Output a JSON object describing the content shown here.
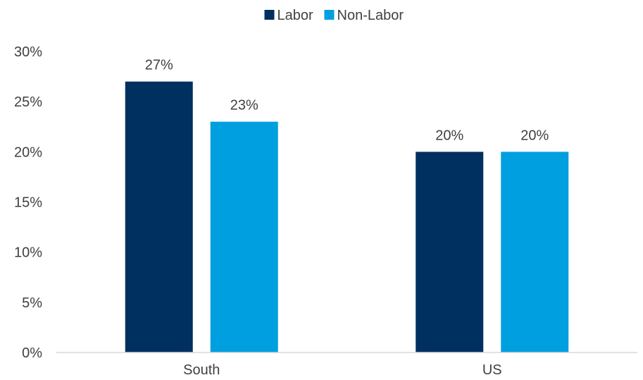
{
  "chart_data": {
    "type": "bar",
    "categories": [
      "South",
      "US"
    ],
    "series": [
      {
        "name": "Labor",
        "values": [
          27,
          20
        ],
        "color": "#003060",
        "labels": [
          "27%",
          "20%"
        ]
      },
      {
        "name": "Non-Labor",
        "values": [
          23,
          20
        ],
        "color": "#009fdf",
        "labels": [
          "23%",
          "20%"
        ]
      }
    ],
    "ylim": [
      0,
      30
    ],
    "yticks": [
      0,
      5,
      10,
      15,
      20,
      25,
      30
    ],
    "ytick_labels": [
      "0%",
      "5%",
      "10%",
      "15%",
      "20%",
      "25%",
      "30%"
    ],
    "grid": false,
    "legend_position": "top-center",
    "axis_color": "#d9d9d9"
  }
}
